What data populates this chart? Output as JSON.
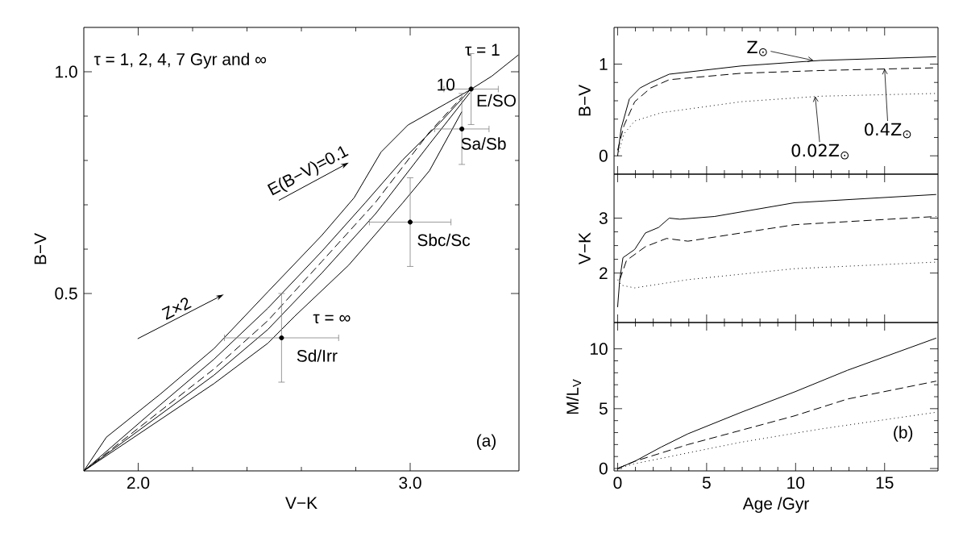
{
  "chart_data": [
    {
      "type": "line",
      "xlabel": "V−K",
      "ylabel": "B−V",
      "xlim": [
        1.8,
        3.4
      ],
      "ylim": [
        0.1,
        1.1
      ],
      "xticks": [
        {
          "value": 2.0,
          "label": "2.0"
        },
        {
          "value": 3.0,
          "label": "3.0"
        }
      ],
      "yticks": [
        {
          "value": 0.5,
          "label": "0.5"
        },
        {
          "value": 1.0,
          "label": "1.0"
        }
      ],
      "marker": "none",
      "line_style": "solid",
      "series": [
        {
          "color": "#000000",
          "x": [
            1.8,
            1.883,
            2.081,
            2.279,
            2.477,
            2.675,
            2.794,
            2.893,
            2.992,
            3.131,
            3.22,
            3.3,
            3.398
          ],
          "values": [
            0.1,
            0.176,
            0.273,
            0.376,
            0.504,
            0.631,
            0.716,
            0.819,
            0.88,
            0.928,
            0.959,
            0.99,
            1.038
          ]
        },
        {
          "color": "#000000",
          "x": [
            1.8,
            2.081,
            2.279,
            2.477,
            2.675,
            2.834,
            2.972,
            3.111,
            3.22
          ],
          "values": [
            0.1,
            0.249,
            0.352,
            0.467,
            0.595,
            0.704,
            0.801,
            0.886,
            0.959
          ]
        },
        {
          "color": "#000000",
          "line_style": "dashed",
          "x": [
            1.8,
            2.279,
            2.477,
            2.675,
            2.873,
            3.071,
            3.19
          ],
          "values": [
            0.1,
            0.33,
            0.439,
            0.572,
            0.706,
            0.864,
            0.943
          ]
        },
        {
          "color": "#000000",
          "x": [
            1.8,
            2.279,
            2.477,
            2.675,
            2.873,
            3.071,
            3.22
          ],
          "values": [
            0.1,
            0.316,
            0.419,
            0.546,
            0.68,
            0.837,
            0.953
          ]
        },
        {
          "color": "#000000",
          "x": [
            1.8,
            2.279,
            2.477,
            2.576,
            2.774,
            2.972,
            3.071,
            3.19
          ],
          "values": [
            0.1,
            0.297,
            0.388,
            0.449,
            0.564,
            0.704,
            0.777,
            0.91
          ]
        },
        {
          "type": "scatter",
          "marker": "circle",
          "color": "#000000",
          "x": [
            3.224,
            3.19,
            3.0,
            2.527
          ],
          "values": [
            0.961,
            0.871,
            0.661,
            0.4
          ],
          "xerrors": [
            0.1,
            0.1,
            0.15,
            0.21
          ],
          "errors": [
            0.08,
            0.08,
            0.1,
            0.1
          ]
        }
      ],
      "annotations": [
        "τ = 1, 2, 4, 7 Gyr and ∞",
        "(a)",
        "E(B−V)=0.1",
        "Z×2",
        {
          "text": "τ = 1",
          "x": 3.35,
          "y": 1.01
        },
        {
          "text": "10",
          "x": 3.22,
          "y": 0.96
        },
        {
          "text": "τ = ∞",
          "x": 2.6,
          "y": 0.45
        },
        {
          "text": "E/SO",
          "x": 3.224,
          "y": 0.961
        },
        {
          "text": "Sa/Sb",
          "x": 3.19,
          "y": 0.871
        },
        {
          "text": "Sbc/Sc",
          "x": 3.0,
          "y": 0.661
        },
        {
          "text": "Sd/Irr",
          "x": 2.527,
          "y": 0.4
        }
      ]
    },
    {
      "type": "line",
      "ylabel": "B−V",
      "xlim": [
        -0.2,
        18
      ],
      "ylim": [
        -0.2,
        1.4
      ],
      "xticks": [
        0,
        5,
        10,
        15
      ],
      "yticks": [
        0,
        1
      ],
      "tick_labels": "y",
      "marker": "none",
      "series": [
        {
          "color": "#000000",
          "line_style": "solid",
          "x": [
            0,
            0.2,
            0.66,
            1.26,
            1.86,
            2.9,
            6.95,
            11.4,
            17.9
          ],
          "values": [
            0,
            0.3,
            0.62,
            0.74,
            0.8,
            0.89,
            0.98,
            1.04,
            1.08
          ]
        },
        {
          "color": "#000000",
          "line_style": "dashed",
          "x": [
            0,
            0.36,
            0.96,
            1.86,
            2.9,
            6.95,
            11.4,
            17.9
          ],
          "values": [
            0.06,
            0.33,
            0.59,
            0.74,
            0.83,
            0.9,
            0.93,
            0.96
          ]
        },
        {
          "color": "#000000",
          "line_style": "dotted",
          "x": [
            0,
            0.36,
            0.96,
            2.46,
            6.95,
            11.4,
            17.9
          ],
          "values": [
            0,
            0.24,
            0.38,
            0.47,
            0.59,
            0.65,
            0.68
          ]
        }
      ],
      "annotations": [
        {
          "text": "Z$_{⊙}$",
          "x": 11.0,
          "y": 1.04
        },
        {
          "text": "0.4Z$_{⊙}$",
          "x": 15.0,
          "y": 0.95
        },
        {
          "text": "0.02Z$_{⊙}$",
          "x": 11.1,
          "y": 0.65
        }
      ]
    },
    {
      "type": "line",
      "ylabel": "V−K",
      "xlim": [
        -0.2,
        18
      ],
      "ylim": [
        1.1,
        3.8
      ],
      "xticks": [
        0,
        5,
        10,
        15
      ],
      "yticks": [
        2,
        3
      ],
      "tick_labels": "y",
      "marker": "none",
      "series": [
        {
          "color": "#000000",
          "line_style": "solid",
          "x": [
            0,
            0.12,
            0.3,
            0.96,
            1.56,
            2.3,
            2.9,
            3.5,
            5.45,
            9.94,
            17.9
          ],
          "values": [
            1.38,
            1.88,
            2.28,
            2.43,
            2.73,
            2.83,
            3.0,
            2.98,
            3.03,
            3.28,
            3.43
          ]
        },
        {
          "color": "#000000",
          "line_style": "dashed",
          "x": [
            0.12,
            0.5,
            1.56,
            2.75,
            3.95,
            9.94,
            17.9
          ],
          "values": [
            1.88,
            2.23,
            2.48,
            2.63,
            2.58,
            2.88,
            3.03
          ]
        },
        {
          "color": "#000000",
          "line_style": "dotted",
          "x": [
            0,
            0.2,
            0.96,
            3.95,
            9.94,
            17.9
          ],
          "values": [
            1.88,
            1.78,
            1.73,
            1.88,
            2.08,
            2.2
          ]
        }
      ]
    },
    {
      "type": "line",
      "xlabel": "Age /Gyr",
      "ylabel": "M/L$_{V}$",
      "xlim": [
        -0.2,
        18
      ],
      "ylim": [
        -0.2,
        12.2
      ],
      "xticks": [
        0,
        5,
        10,
        15
      ],
      "yticks": [
        0,
        5,
        10
      ],
      "marker": "none",
      "series": [
        {
          "color": "#000000",
          "line_style": "solid",
          "x": [
            0,
            0.96,
            2.46,
            3.95,
            6.95,
            9.94,
            12.9,
            17.9
          ],
          "values": [
            0,
            0.6,
            1.8,
            2.9,
            4.7,
            6.4,
            8.2,
            10.9
          ]
        },
        {
          "color": "#000000",
          "line_style": "dashed",
          "x": [
            0,
            0.96,
            3.95,
            6.95,
            9.94,
            12.9,
            17.9
          ],
          "values": [
            0,
            0.6,
            2.0,
            3.2,
            4.4,
            5.8,
            7.3
          ]
        },
        {
          "color": "#000000",
          "line_style": "dotted",
          "x": [
            0,
            0.96,
            3.95,
            6.95,
            11.4,
            17.9
          ],
          "values": [
            0,
            0.4,
            1.3,
            2.2,
            3.3,
            4.7
          ]
        }
      ],
      "annotations": [
        "(b)"
      ]
    }
  ]
}
